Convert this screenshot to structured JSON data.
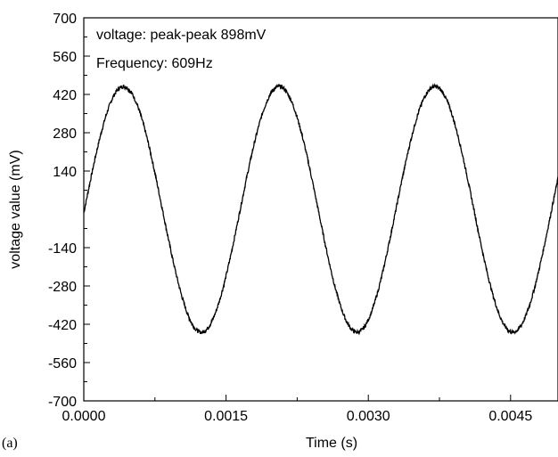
{
  "chart_data": {
    "type": "line",
    "xlabel": "Time (s)",
    "ylabel": "voltage value (mV)",
    "xlim": [
      0,
      0.005
    ],
    "ylim": [
      -700,
      700
    ],
    "x_ticks": [
      0.0,
      0.0015,
      0.003,
      0.0045
    ],
    "x_tick_labels": [
      "0.0000",
      "0.0015",
      "0.0030",
      "0.0045"
    ],
    "y_ticks": [
      -700,
      -560,
      -420,
      -280,
      -140,
      140,
      280,
      420,
      560,
      700
    ],
    "y_tick_labels": [
      "-700",
      "-560",
      "-420",
      "-280",
      "-140",
      "140",
      "280",
      "420",
      "560",
      "700"
    ],
    "annotations": [
      "voltage: peak-peak 898mV",
      "Frequency: 609Hz"
    ],
    "panel_label": "(a)",
    "grid": false,
    "series": [
      {
        "amplitude_mv": 449,
        "frequency_hz": 609,
        "x": [
          0.0,
          0.0002,
          0.0004,
          0.0006,
          0.0008,
          0.001,
          0.0012,
          0.0014,
          0.0016,
          0.0018,
          0.002,
          0.0022,
          0.0024,
          0.0026,
          0.0028,
          0.003,
          0.0032,
          0.0034,
          0.0036,
          0.0038,
          0.004,
          0.0042,
          0.0044,
          0.0046,
          0.0048,
          0.005
        ],
        "y": [
          -13,
          356,
          438,
          178,
          -215,
          -446,
          -298,
          69,
          397,
          417,
          117,
          -267,
          -449,
          -252,
          130,
          420,
          392,
          56,
          -311,
          -444,
          -200,
          187,
          436,
          356,
          -10,
          -358
        ]
      }
    ]
  }
}
